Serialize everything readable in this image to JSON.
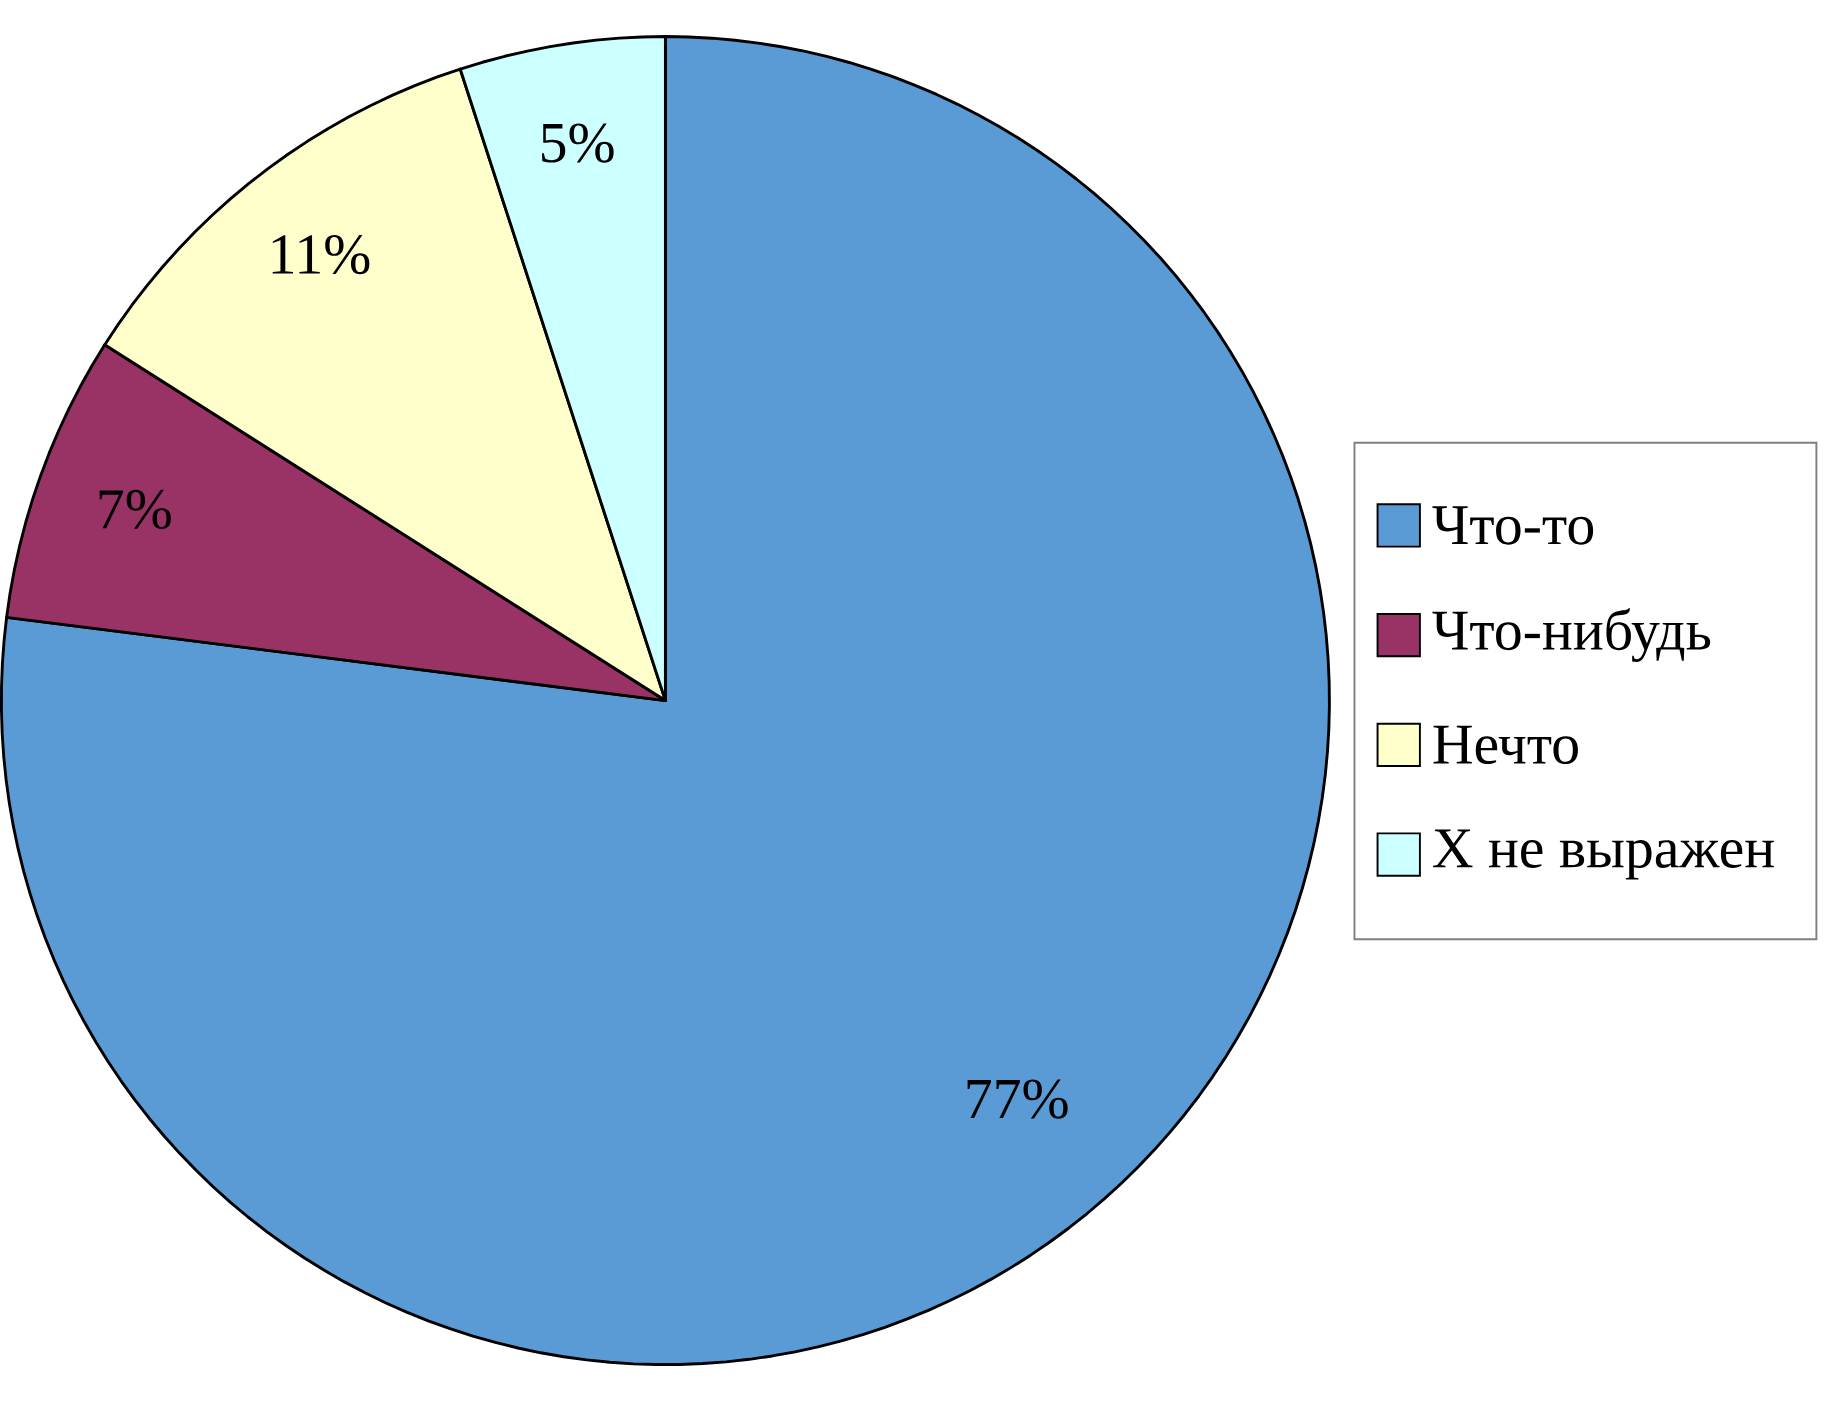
{
  "chart_data": {
    "type": "pie",
    "categories": [
      "Что-то",
      "Что-нибудь",
      "Нечто",
      "X не выражен"
    ],
    "values": [
      77,
      7,
      11,
      5
    ],
    "colors": [
      "#5b9bd5",
      "#993366",
      "#ffffcc",
      "#ccffff"
    ],
    "value_labels": [
      "77%",
      "7%",
      "11%",
      "5%"
    ],
    "legend": "right"
  }
}
